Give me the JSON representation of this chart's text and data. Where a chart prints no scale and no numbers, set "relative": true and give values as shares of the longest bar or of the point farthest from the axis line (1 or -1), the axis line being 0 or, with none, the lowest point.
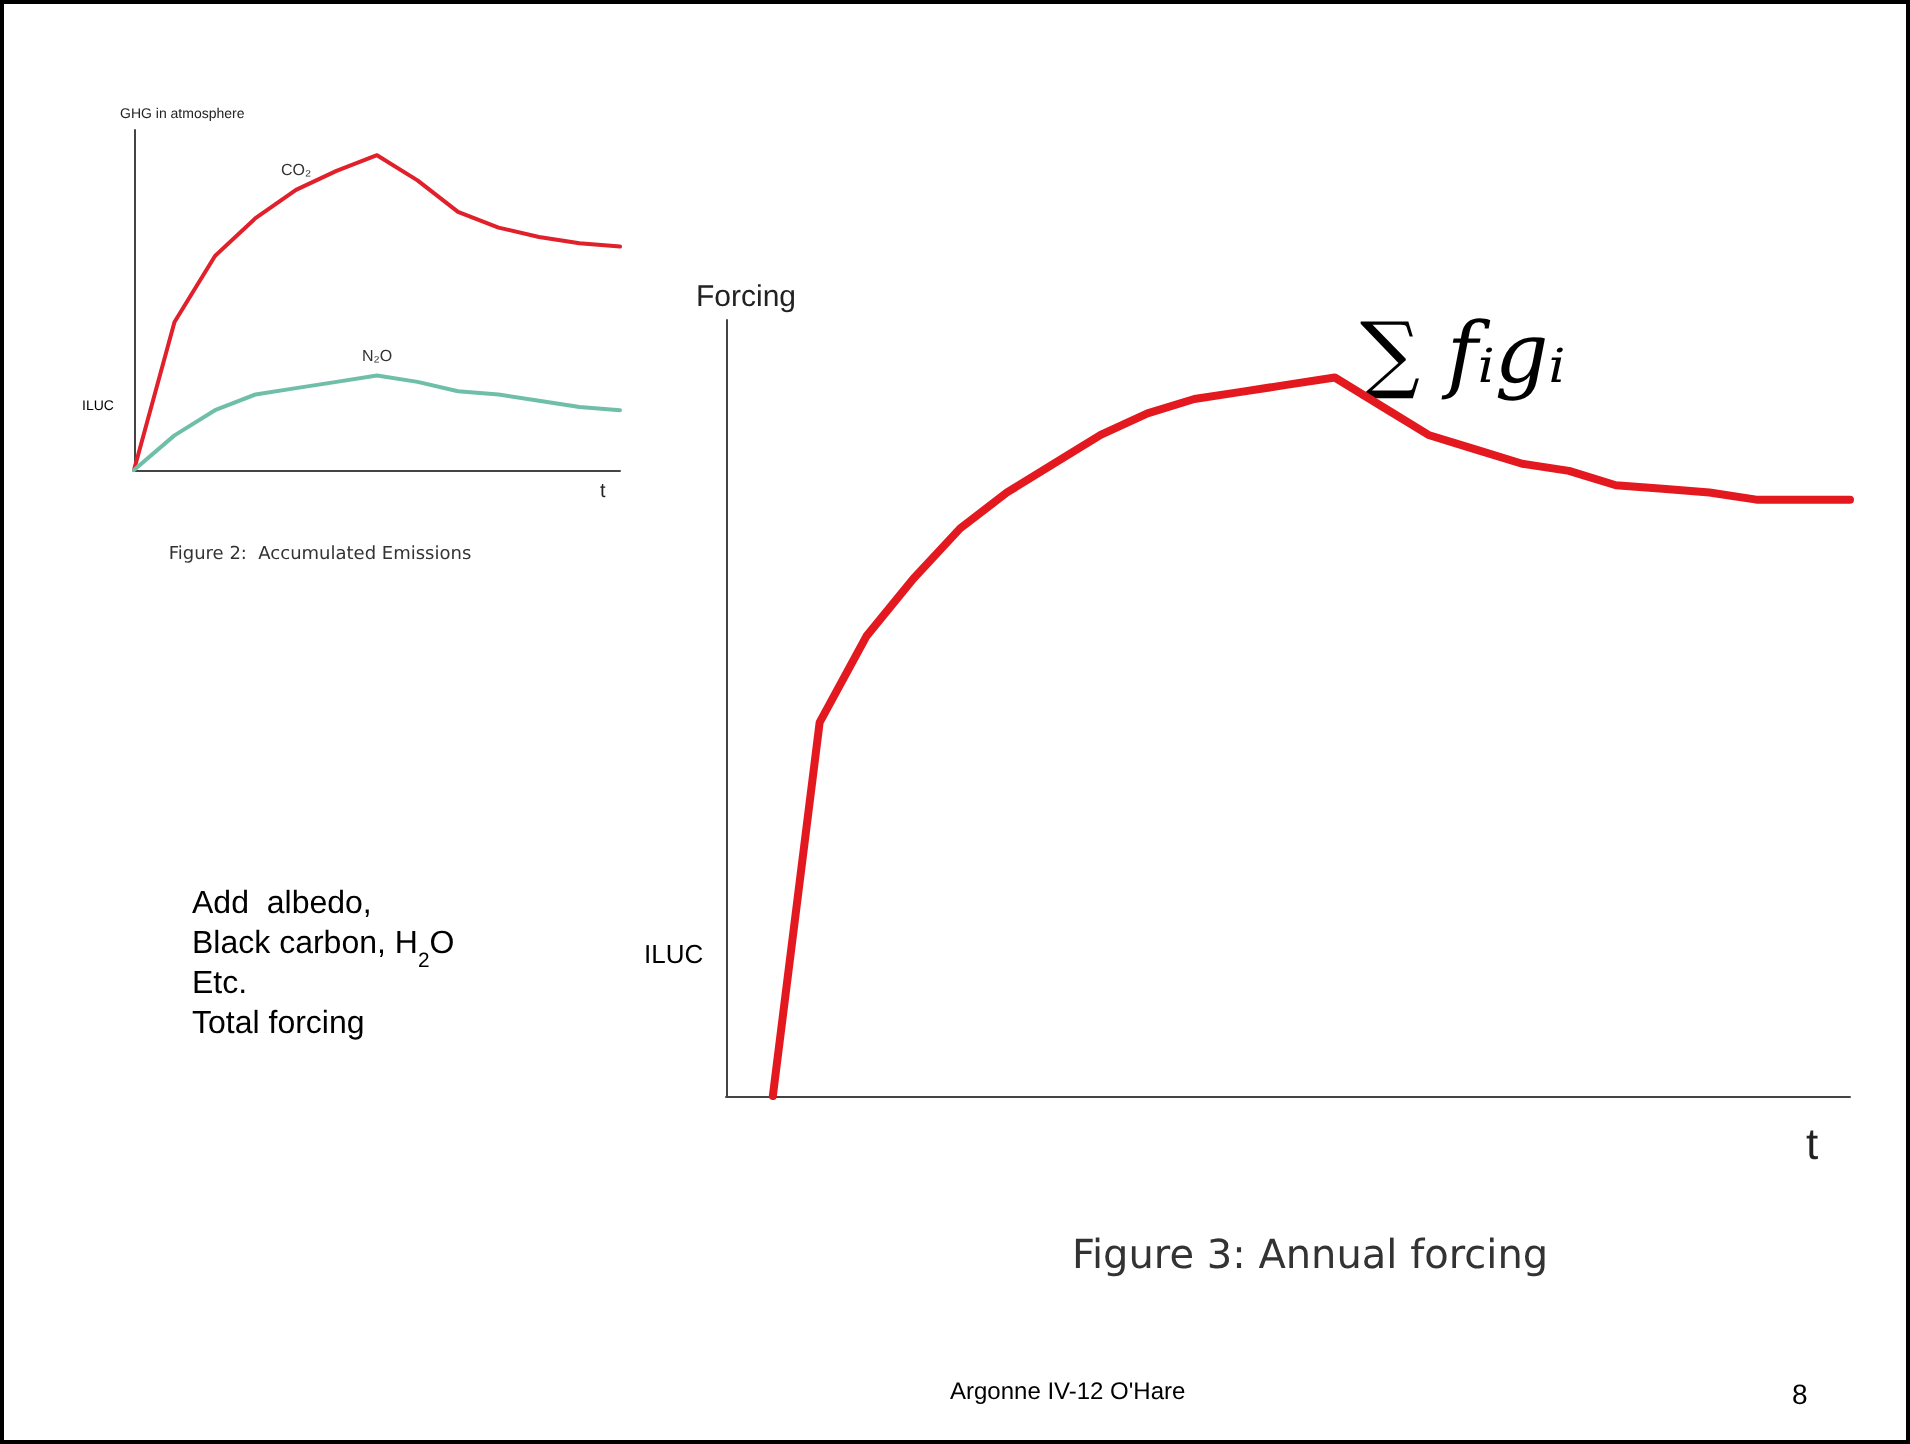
{
  "chart_data": [
    {
      "type": "line",
      "title": "Figure 3: Annual forcing",
      "xlabel": "t",
      "ylabel": "Forcing",
      "relative": true,
      "legend": false,
      "grid": false,
      "marker": "none",
      "line_style": "solid",
      "categories": [
        null,
        null,
        null,
        null,
        null,
        null,
        null,
        null,
        null,
        null,
        null,
        null,
        null,
        null,
        null,
        null,
        null,
        null,
        null,
        null,
        null,
        null,
        null,
        null,
        null
      ],
      "series": [
        {
          "color": "#e3191f",
          "values": [
            null,
            0,
            0.52,
            0.64,
            0.72,
            0.79,
            0.84,
            0.88,
            0.92,
            0.95,
            0.97,
            0.98,
            0.99,
            1.0,
            0.96,
            0.92,
            0.9,
            0.88,
            0.87,
            0.85,
            0.845,
            0.84,
            0.83,
            0.83,
            0.83
          ]
        }
      ],
      "annotations": [
        "ILUC",
        "∑ fᵢgᵢ",
        "Add  albedo,\nBlack carbon, H$_{2}$O\nEtc.\nTotal forcing",
        "Argonne IV-12 O'Hare",
        "8"
      ]
    },
    {
      "type": "line",
      "title": "Figure 2:  Accumulated Emissions",
      "xlabel": "t",
      "ylabel": "GHG in atmosphere",
      "relative": true,
      "legend": false,
      "grid": false,
      "marker": "none",
      "line_style": "solid",
      "categories": [
        null,
        null,
        null,
        null,
        null,
        null,
        null,
        null,
        null,
        null,
        null,
        null,
        null
      ],
      "series": [
        {
          "name": "CO₂",
          "color": "#e0202a",
          "values": [
            0,
            0.47,
            0.68,
            0.8,
            0.89,
            0.95,
            1.0,
            0.92,
            0.82,
            0.77,
            0.74,
            0.72,
            0.71
          ]
        },
        {
          "name": "N₂O",
          "color": "#6fbfa8",
          "values": [
            0,
            0.11,
            0.19,
            0.24,
            0.26,
            0.28,
            0.3,
            0.28,
            0.25,
            0.24,
            0.22,
            0.2,
            0.19
          ]
        }
      ],
      "annotations": [
        "ILUC"
      ]
    }
  ]
}
